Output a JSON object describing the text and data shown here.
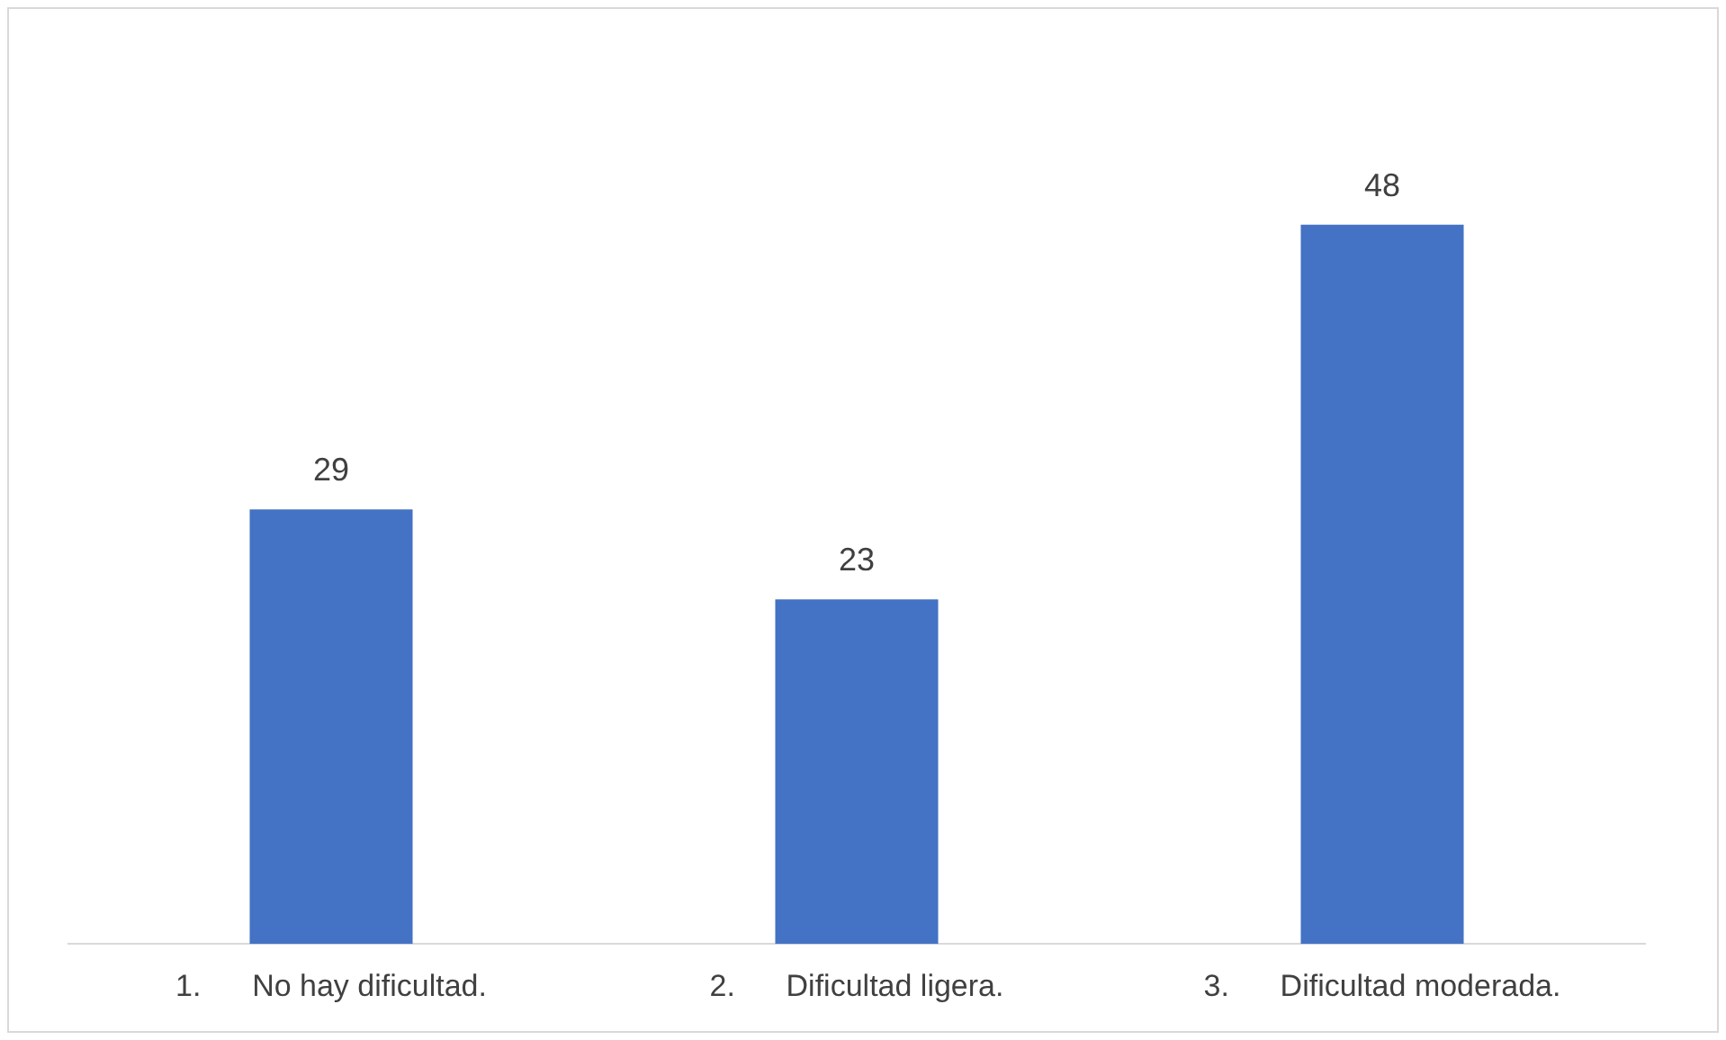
{
  "chart_data": {
    "type": "bar",
    "categories": [
      "1.      No hay dificultad.",
      "2.      Dificultad ligera.",
      "3.      Dificultad moderada."
    ],
    "values": [
      29,
      23,
      48
    ],
    "color": "#4472c4",
    "data_labels": true,
    "grid": false,
    "legend": false
  }
}
